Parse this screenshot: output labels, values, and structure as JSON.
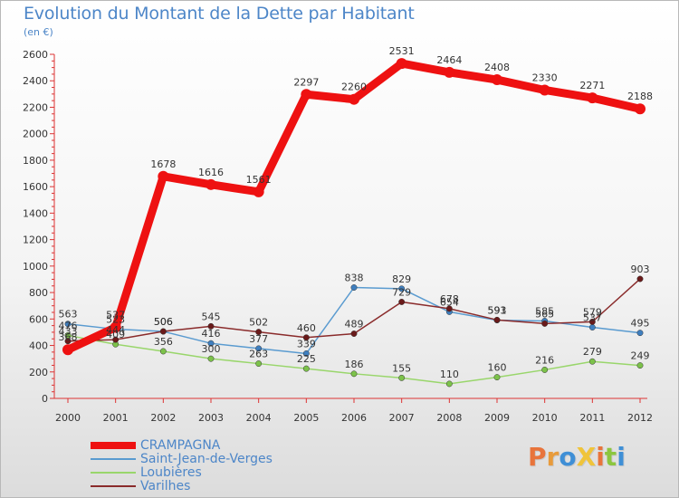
{
  "title": "Evolution du Montant de la Dette par Habitant",
  "subtitle": "(en €)",
  "logo": {
    "text": "ProXiti",
    "colors": [
      "#e8743b",
      "#e89b3b",
      "#3f8fd6",
      "#f0c43a",
      "#e8743b",
      "#8cc63f",
      "#3f8fd6"
    ]
  },
  "chart_data": {
    "type": "line",
    "x": [
      2000,
      2001,
      2002,
      2003,
      2004,
      2005,
      2006,
      2007,
      2008,
      2009,
      2010,
      2011,
      2012
    ],
    "ylim": [
      0,
      2600
    ],
    "yticks": [
      0,
      200,
      400,
      600,
      800,
      1000,
      1200,
      1400,
      1600,
      1800,
      2000,
      2200,
      2400,
      2600
    ],
    "grid": false,
    "legend_position": "bottom-left",
    "series": [
      {
        "name": "Saint-Jean-de-Verges",
        "color": "#5a9bd0",
        "marker": "#3f7fbf",
        "width": 1.5,
        "values": [
          563,
          523,
          506,
          416,
          377,
          339,
          838,
          829,
          654,
          591,
          585,
          537,
          495
        ],
        "labels": [
          "563",
          "523",
          "506",
          "416",
          "377",
          "339",
          "838",
          "829",
          "654",
          "591",
          "585",
          "537",
          "495"
        ]
      },
      {
        "name": "Loubières",
        "color": "#99d66b",
        "marker": "#7cc24a",
        "width": 1.5,
        "values": [
          476,
          409,
          356,
          300,
          263,
          225,
          186,
          155,
          110,
          160,
          216,
          279,
          249
        ],
        "labels": [
          "476",
          "409",
          "356",
          "300",
          "263",
          "225",
          "186",
          "155",
          "110",
          "160",
          "216",
          "279",
          "249"
        ]
      },
      {
        "name": "Varilhes",
        "color": "#8a2b2b",
        "marker": "#6a1a1a",
        "width": 1.5,
        "values": [
          433,
          444,
          506,
          545,
          502,
          460,
          489,
          729,
          678,
          593,
          565,
          579,
          903
        ],
        "labels": [
          "433",
          "444",
          "506",
          "545",
          "502",
          "460",
          "489",
          "729",
          "678",
          "593",
          "565",
          "579",
          "903"
        ]
      },
      {
        "name": "CRAMPAGNA",
        "color": "#ee1111",
        "marker": "#ee1111",
        "width": 9,
        "values": [
          368,
          537,
          1678,
          1616,
          1561,
          2297,
          2260,
          2531,
          2464,
          2408,
          2330,
          2271,
          2188
        ],
        "labels": [
          "368",
          "537",
          "1678",
          "1616",
          "1561",
          "2297",
          "2260",
          "2531",
          "2464",
          "2408",
          "2330",
          "2271",
          "2188"
        ]
      }
    ],
    "legend": [
      "CRAMPAGNA",
      "Saint-Jean-de-Verges",
      "Loubières",
      "Varilhes"
    ]
  }
}
